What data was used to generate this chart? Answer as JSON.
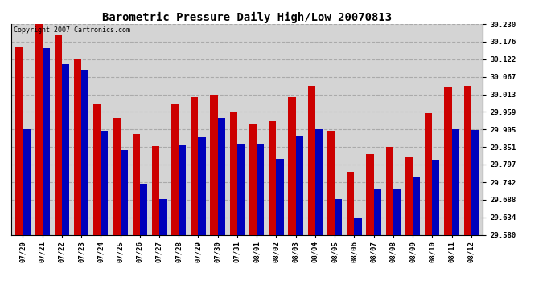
{
  "title": "Barometric Pressure Daily High/Low 20070813",
  "copyright": "Copyright 2007 Cartronics.com",
  "dates": [
    "07/20",
    "07/21",
    "07/22",
    "07/23",
    "07/24",
    "07/25",
    "07/26",
    "07/27",
    "07/28",
    "07/29",
    "07/30",
    "07/31",
    "08/01",
    "08/02",
    "08/03",
    "08/04",
    "08/05",
    "08/06",
    "08/07",
    "08/08",
    "08/09",
    "08/10",
    "08/11",
    "08/12"
  ],
  "highs": [
    30.16,
    30.23,
    30.195,
    30.122,
    29.985,
    29.94,
    29.89,
    29.853,
    29.985,
    30.005,
    30.013,
    29.96,
    29.92,
    29.93,
    30.005,
    30.04,
    29.9,
    29.775,
    29.83,
    29.85,
    29.82,
    29.955,
    30.035,
    30.04
  ],
  "lows": [
    29.905,
    30.155,
    30.105,
    30.09,
    29.9,
    29.84,
    29.738,
    29.69,
    29.855,
    29.88,
    29.94,
    29.86,
    29.858,
    29.815,
    29.885,
    29.905,
    29.69,
    29.634,
    29.722,
    29.722,
    29.76,
    29.812,
    29.905,
    29.902
  ],
  "high_color": "#cc0000",
  "low_color": "#0000bb",
  "background_color": "#ffffff",
  "plot_bg_color": "#d4d4d4",
  "grid_color": "#aaaaaa",
  "ymin": 29.58,
  "ymax": 30.23,
  "yticks": [
    29.58,
    29.634,
    29.688,
    29.742,
    29.797,
    29.851,
    29.905,
    29.959,
    30.013,
    30.067,
    30.122,
    30.176,
    30.23
  ],
  "title_fontsize": 10,
  "tick_fontsize": 6.5,
  "copyright_fontsize": 6,
  "bar_width": 0.38
}
